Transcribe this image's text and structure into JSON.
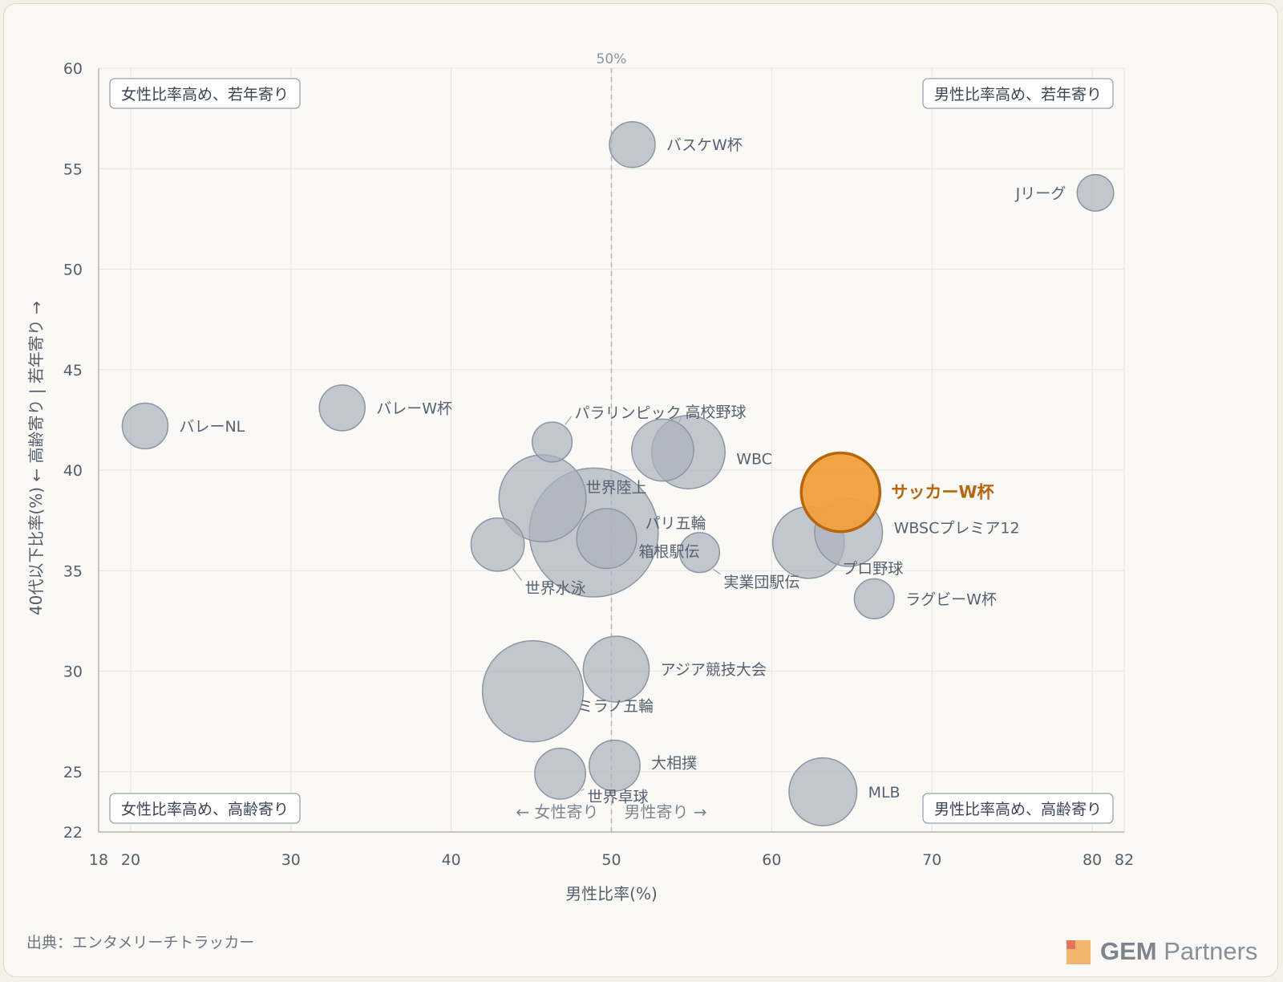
{
  "chart_data": {
    "type": "scatter",
    "subtype": "bubble",
    "xlabel": "男性比率(%)",
    "ylabel": "40代以下比率(%) ← 高齢寄り | 若年寄り →",
    "xlim": [
      18,
      82
    ],
    "ylim": [
      22,
      60
    ],
    "xticks": [
      18,
      20,
      30,
      40,
      50,
      60,
      70,
      80,
      82
    ],
    "yticks": [
      22,
      25,
      30,
      35,
      40,
      45,
      50,
      55,
      60
    ],
    "grid": true,
    "reference_line": {
      "x": 50,
      "label": "50%"
    },
    "direction_labels": {
      "left": "← 女性寄り",
      "right": "男性寄り →"
    },
    "quadrant_labels": {
      "top_left": "女性比率高め、若年寄り",
      "top_right": "男性比率高め、若年寄り",
      "bottom_left": "女性比率高め、高齢寄り",
      "bottom_right": "男性比率高め、高齢寄り"
    },
    "points": [
      {
        "label": "バスケW杯",
        "x": 51.3,
        "y": 56.2,
        "size": 1.0
      },
      {
        "label": "Jリーグ",
        "x": 80.2,
        "y": 53.8,
        "size": 0.7
      },
      {
        "label": "バレーNL",
        "x": 20.9,
        "y": 42.2,
        "size": 1.0
      },
      {
        "label": "バレーW杯",
        "x": 33.2,
        "y": 43.1,
        "size": 1.0
      },
      {
        "label": "パラリンピック",
        "x": 46.3,
        "y": 41.4,
        "size": 0.8
      },
      {
        "label": "高校野球",
        "x": 53.2,
        "y": 41.0,
        "size": 1.7
      },
      {
        "label": "WBC",
        "x": 54.8,
        "y": 40.9,
        "size": 2.3
      },
      {
        "label": "サッカーW杯",
        "x": 64.3,
        "y": 38.9,
        "size": 2.6,
        "highlight": true
      },
      {
        "label": "世界陸上",
        "x": 45.7,
        "y": 38.6,
        "size": 3.1
      },
      {
        "label": "WBSCプレミア12",
        "x": 64.8,
        "y": 36.9,
        "size": 2.0
      },
      {
        "label": "パリ五輪",
        "x": 48.9,
        "y": 36.9,
        "size": 6.0
      },
      {
        "label": "箱根駅伝",
        "x": 49.7,
        "y": 36.6,
        "size": 1.6
      },
      {
        "label": "世界水泳",
        "x": 42.9,
        "y": 36.3,
        "size": 1.3
      },
      {
        "label": "実業団駅伝",
        "x": 55.5,
        "y": 35.9,
        "size": 0.8
      },
      {
        "label": "プロ野球",
        "x": 62.3,
        "y": 36.4,
        "size": 2.2
      },
      {
        "label": "ラグビーW杯",
        "x": 66.4,
        "y": 33.6,
        "size": 0.8
      },
      {
        "label": "アジア競技大会",
        "x": 50.3,
        "y": 30.1,
        "size": 1.9
      },
      {
        "label": "ミラノ五輪",
        "x": 45.1,
        "y": 29.0,
        "size": 4.0
      },
      {
        "label": "大相撲",
        "x": 50.2,
        "y": 25.3,
        "size": 1.2
      },
      {
        "label": "世界卓球",
        "x": 46.8,
        "y": 24.9,
        "size": 1.2
      },
      {
        "label": "MLB",
        "x": 63.2,
        "y": 24.0,
        "size": 2.0
      }
    ]
  },
  "footer": {
    "source": "出典：エンタメリーチトラッカー",
    "logo_bold": "GEM",
    "logo_rest": " Partners"
  }
}
